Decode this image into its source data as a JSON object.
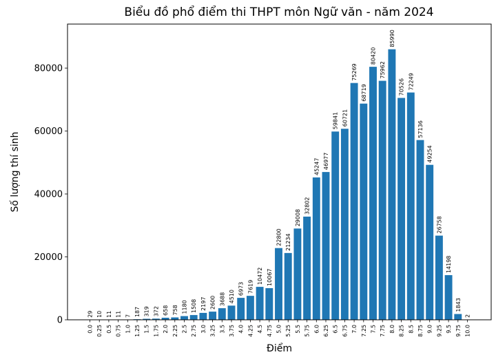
{
  "chart_data": {
    "type": "bar",
    "title": "Biểu đồ phổ điểm thi THPT môn Ngữ văn - năm 2024",
    "xlabel": "Điểm",
    "ylabel": "Số lượng thí sinh",
    "categories": [
      "0.0",
      "0.25",
      "0.5",
      "0.75",
      "1.0",
      "1.25",
      "1.5",
      "1.75",
      "2.0",
      "2.25",
      "2.5",
      "2.75",
      "3.0",
      "3.25",
      "3.5",
      "3.75",
      "4.0",
      "4.25",
      "4.5",
      "4.75",
      "5.0",
      "5.25",
      "5.5",
      "5.75",
      "6.0",
      "6.25",
      "6.5",
      "6.75",
      "7.0",
      "7.25",
      "7.5",
      "7.75",
      "8.0",
      "8.25",
      "8.5",
      "8.75",
      "9.0",
      "9.25",
      "9.5",
      "9.75",
      "10.0"
    ],
    "values": [
      29,
      10,
      11,
      11,
      7,
      187,
      319,
      372,
      658,
      758,
      1180,
      1508,
      2197,
      2600,
      3688,
      4510,
      6973,
      7619,
      10472,
      10067,
      22800,
      21234,
      29008,
      32802,
      45247,
      46977,
      59841,
      60721,
      75269,
      68719,
      80420,
      75962,
      85990,
      70526,
      72249,
      57136,
      49254,
      26758,
      14198,
      1843,
      2
    ],
    "data_labels": [
      "29",
      "10",
      "11",
      "11",
      "7",
      "187",
      "319",
      "372",
      "658",
      "758",
      "1180",
      "1508",
      "2197",
      "2600",
      "3688",
      "4510",
      "6973",
      "7619",
      "10472",
      "10067",
      "22800",
      "21234",
      "29008",
      "32802",
      "45247",
      "46977",
      "59841",
      "60721",
      "75269",
      "68719",
      "80420",
      "75962",
      "85990",
      "70526",
      "72249",
      "57136",
      "49254",
      "26758",
      "14198",
      "1843",
      "2"
    ],
    "yticks": [
      0,
      20000,
      40000,
      60000,
      80000
    ],
    "ytick_labels": [
      "0",
      "20000",
      "40000",
      "60000",
      "80000"
    ],
    "ylim": [
      0,
      94000
    ],
    "grid": false,
    "bar_color": "#1f77b4"
  }
}
